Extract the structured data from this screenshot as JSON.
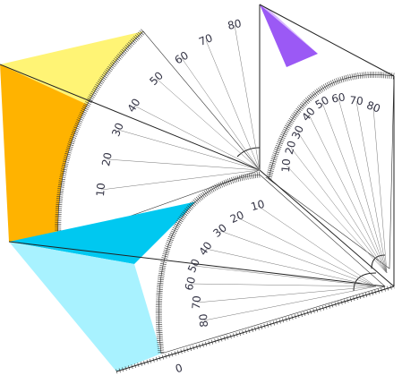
{
  "protractors": [
    {
      "name": "left-wall",
      "labels": [
        "10",
        "20",
        "30",
        "40",
        "50",
        "60",
        "70",
        "80"
      ]
    },
    {
      "name": "right-wall",
      "labels": [
        "10",
        "20",
        "30",
        "40",
        "50",
        "60",
        "70",
        "80"
      ]
    },
    {
      "name": "floor",
      "labels": [
        "10",
        "20",
        "30",
        "40",
        "50",
        "60",
        "70",
        "80"
      ]
    }
  ],
  "ruler": {
    "label": "0"
  }
}
